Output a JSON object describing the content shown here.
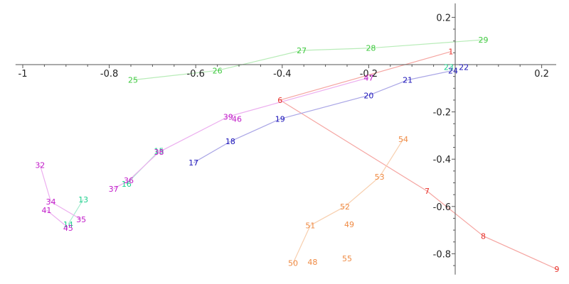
{
  "chart_data": {
    "type": "scatter",
    "title": "",
    "xlabel": "",
    "ylabel": "",
    "xlim": [
      -1.02,
      0.23
    ],
    "ylim": [
      -0.885,
      0.235
    ],
    "grid": false,
    "x_ticks": [
      {
        "value": -1,
        "label": "-1"
      },
      {
        "value": -0.8,
        "label": "-0.8"
      },
      {
        "value": -0.6,
        "label": "-0.6"
      },
      {
        "value": -0.4,
        "label": "-0.4"
      },
      {
        "value": -0.2,
        "label": "-0.2"
      },
      {
        "value": 0.2,
        "label": "0.2"
      }
    ],
    "y_ticks": [
      {
        "value": 0.2,
        "label": "0.2"
      },
      {
        "value": -0.2,
        "label": "-0.2"
      },
      {
        "value": -0.4,
        "label": "-0.4"
      },
      {
        "value": -0.6,
        "label": "-0.6"
      },
      {
        "value": -0.8,
        "label": "-0.8"
      }
    ],
    "series": [
      {
        "color": "#e8302a",
        "line_color": "#f5a5a1",
        "points": [
          {
            "label": "1",
            "x": -0.01,
            "y": 0.055
          },
          {
            "label": "6",
            "x": -0.405,
            "y": -0.15
          },
          {
            "label": "7",
            "x": -0.065,
            "y": -0.535
          },
          {
            "label": "8",
            "x": 0.065,
            "y": -0.725
          },
          {
            "label": "9",
            "x": 0.235,
            "y": -0.865
          }
        ]
      },
      {
        "color": "#1ccf8c",
        "line_color": "#a8ecd1",
        "points": [
          {
            "label": "13",
            "x": -0.86,
            "y": -0.57
          },
          {
            "label": "14",
            "x": -0.895,
            "y": -0.675
          },
          {
            "label": "15",
            "x": -0.685,
            "y": -0.365
          },
          {
            "label": "16",
            "x": -0.76,
            "y": -0.505
          },
          {
            "label": "23",
            "x": -0.015,
            "y": -0.01
          }
        ]
      },
      {
        "color": "#1b14b8",
        "line_color": "#aaa6e6",
        "points": [
          {
            "label": "17",
            "x": -0.605,
            "y": -0.415
          },
          {
            "label": "18",
            "x": -0.52,
            "y": -0.325
          },
          {
            "label": "19",
            "x": -0.405,
            "y": -0.23
          },
          {
            "label": "20",
            "x": -0.2,
            "y": -0.13
          },
          {
            "label": "21",
            "x": -0.11,
            "y": -0.065
          },
          {
            "label": "22",
            "x": 0.02,
            "y": -0.01
          },
          {
            "label": "24",
            "x": -0.005,
            "y": -0.025
          }
        ]
      },
      {
        "color": "#3ec93e",
        "line_color": "#b8ecb8",
        "points": [
          {
            "label": "25",
            "x": -0.745,
            "y": -0.065
          },
          {
            "label": "26",
            "x": -0.55,
            "y": -0.025
          },
          {
            "label": "27",
            "x": -0.355,
            "y": 0.06
          },
          {
            "label": "28",
            "x": -0.195,
            "y": 0.07
          },
          {
            "label": "29",
            "x": 0.065,
            "y": 0.105
          }
        ]
      },
      {
        "color": "#c11ac9",
        "line_color": "#ecaeef",
        "points": [
          {
            "label": "32",
            "x": -0.96,
            "y": -0.425
          },
          {
            "label": "34",
            "x": -0.935,
            "y": -0.58
          },
          {
            "label": "35",
            "x": -0.865,
            "y": -0.655
          },
          {
            "label": "36",
            "x": -0.755,
            "y": -0.49
          },
          {
            "label": "37",
            "x": -0.79,
            "y": -0.525
          },
          {
            "label": "38",
            "x": -0.685,
            "y": -0.37
          },
          {
            "label": "39",
            "x": -0.525,
            "y": -0.22
          },
          {
            "label": "41",
            "x": -0.945,
            "y": -0.615
          },
          {
            "label": "45",
            "x": -0.895,
            "y": -0.69
          },
          {
            "label": "46",
            "x": -0.505,
            "y": -0.23
          },
          {
            "label": "47",
            "x": -0.2,
            "y": -0.055
          }
        ]
      },
      {
        "color": "#ef8a43",
        "line_color": "#f8cfae",
        "points": [
          {
            "label": "48",
            "x": -0.33,
            "y": -0.835
          },
          {
            "label": "49",
            "x": -0.245,
            "y": -0.675
          },
          {
            "label": "50",
            "x": -0.375,
            "y": -0.84
          },
          {
            "label": "51",
            "x": -0.335,
            "y": -0.68
          },
          {
            "label": "52",
            "x": -0.255,
            "y": -0.6
          },
          {
            "label": "53",
            "x": -0.175,
            "y": -0.475
          },
          {
            "label": "54",
            "x": -0.12,
            "y": -0.315
          },
          {
            "label": "55",
            "x": -0.25,
            "y": -0.82
          }
        ]
      }
    ],
    "connections": [
      {
        "series": 0,
        "from": "1",
        "to": "6"
      },
      {
        "series": 0,
        "from": "6",
        "to": "7"
      },
      {
        "series": 0,
        "from": "7",
        "to": "8"
      },
      {
        "series": 0,
        "from": "8",
        "to": "9"
      },
      {
        "series": 1,
        "from": "13",
        "to": "14"
      },
      {
        "series": 1,
        "from": "15",
        "to": "16"
      },
      {
        "series": 2,
        "from": "17",
        "to": "18"
      },
      {
        "series": 2,
        "from": "18",
        "to": "19"
      },
      {
        "series": 2,
        "from": "19",
        "to": "20"
      },
      {
        "series": 2,
        "from": "20",
        "to": "21"
      },
      {
        "series": 2,
        "from": "21",
        "to": "24"
      },
      {
        "series": 3,
        "from": "25",
        "to": "26"
      },
      {
        "series": 3,
        "from": "26",
        "to": "27"
      },
      {
        "series": 3,
        "from": "27",
        "to": "28"
      },
      {
        "series": 3,
        "from": "28",
        "to": "29"
      },
      {
        "series": 3,
        "from": "29",
        "to": "24"
      },
      {
        "series": 4,
        "from": "32",
        "to": "34"
      },
      {
        "series": 4,
        "from": "34",
        "to": "35"
      },
      {
        "series": 4,
        "from": "41",
        "to": "45"
      },
      {
        "series": 4,
        "from": "37",
        "to": "36"
      },
      {
        "series": 4,
        "from": "36",
        "to": "38"
      },
      {
        "series": 4,
        "from": "38",
        "to": "39"
      },
      {
        "series": 4,
        "from": "39",
        "to": "47"
      },
      {
        "series": 5,
        "from": "50",
        "to": "51"
      },
      {
        "series": 5,
        "from": "51",
        "to": "52"
      },
      {
        "series": 5,
        "from": "52",
        "to": "53"
      },
      {
        "series": 5,
        "from": "53",
        "to": "54"
      }
    ]
  }
}
